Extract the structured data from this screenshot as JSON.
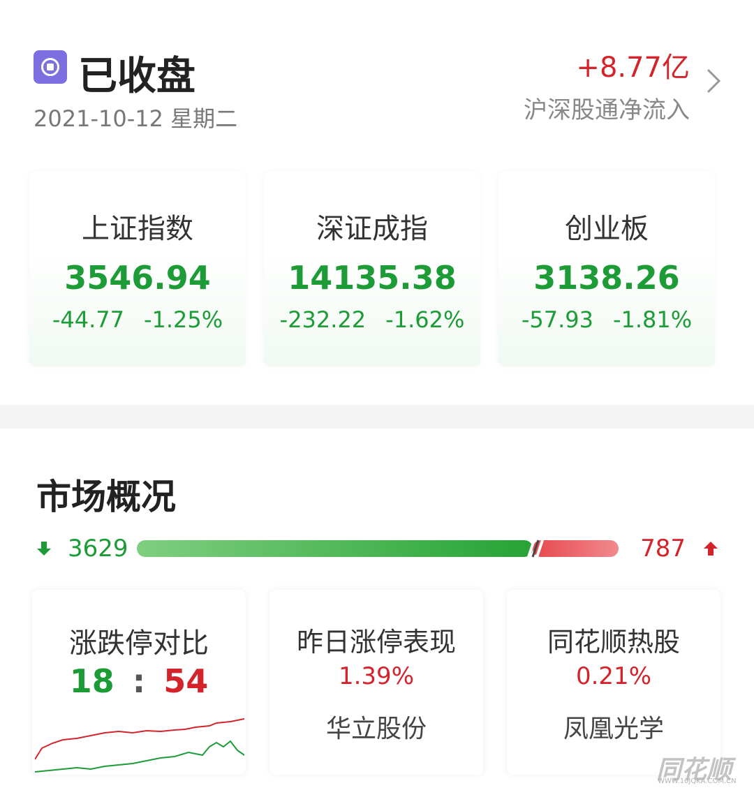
{
  "header": {
    "status": "已收盘",
    "date": "2021-10-12 星期二",
    "flow_value": "+8.77亿",
    "flow_label": "沪深股通净流入"
  },
  "indices": [
    {
      "name": "上证指数",
      "price": "3546.94",
      "change": "-44.77",
      "pct": "-1.25%"
    },
    {
      "name": "深证成指",
      "price": "14135.38",
      "change": "-232.22",
      "pct": "-1.62%"
    },
    {
      "name": "创业板",
      "price": "3138.26",
      "change": "-57.93",
      "pct": "-1.81%"
    }
  ],
  "market": {
    "title": "市场概况",
    "down": 3629,
    "up": 787
  },
  "cards": [
    {
      "title": "涨跌停对比",
      "left": "18",
      "separator": ":",
      "right": "54"
    },
    {
      "title": "昨日涨停表现",
      "pct": "1.39%",
      "stock": "华立股份"
    },
    {
      "title": "同花顺热股",
      "pct": "0.21%",
      "stock": "凤凰光学"
    }
  ],
  "watermark": {
    "brand": "同花顺",
    "url": "WWW.10JQKA.COM.CN"
  }
}
